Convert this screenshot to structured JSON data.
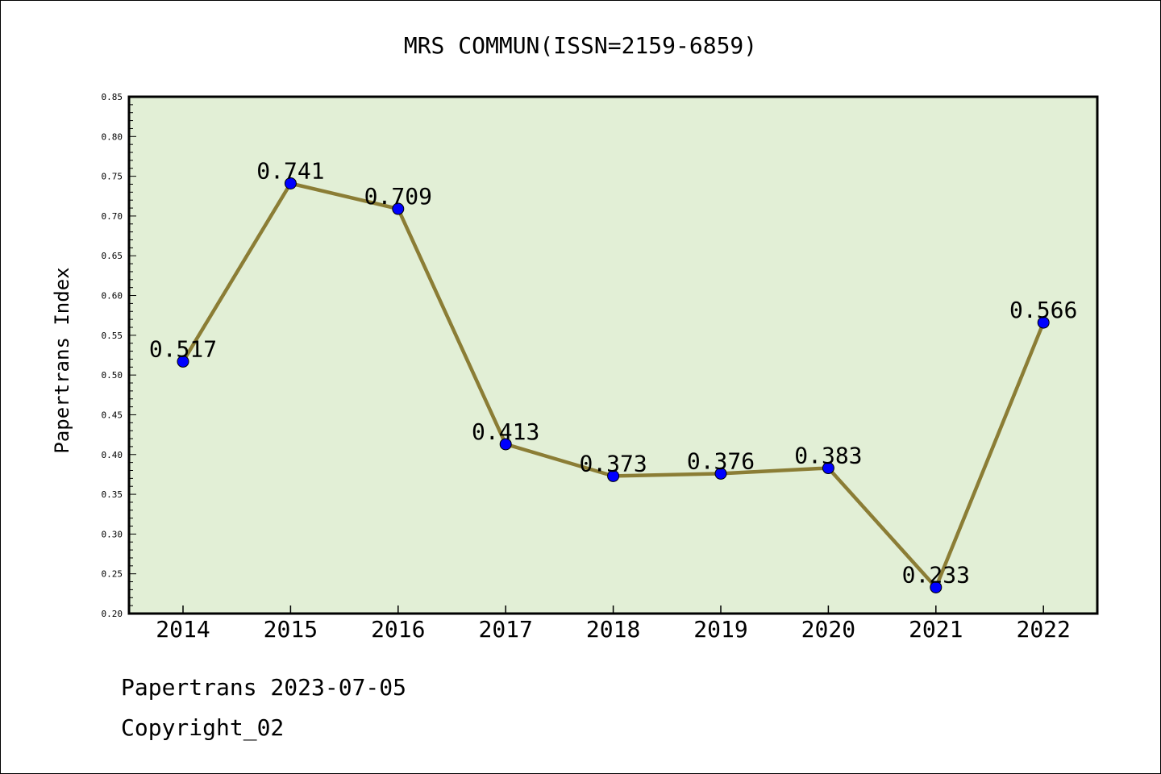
{
  "footer": {
    "date_line": "Papertrans 2023-07-05",
    "copyright_line": "Copyright_02"
  },
  "colors": {
    "plot_background": "#e2efd6",
    "line": "#8b7d35",
    "marker": "#0000ff",
    "axis": "#000000"
  },
  "chart_data": {
    "type": "line",
    "title": "MRS COMMUN(ISSN=2159-6859)",
    "xlabel": "",
    "ylabel": "Papertrans Index",
    "categories": [
      "2014",
      "2015",
      "2016",
      "2017",
      "2018",
      "2019",
      "2020",
      "2021",
      "2022"
    ],
    "values": [
      0.517,
      0.741,
      0.709,
      0.413,
      0.373,
      0.376,
      0.383,
      0.233,
      0.566
    ],
    "data_labels": [
      "0.517",
      "0.741",
      "0.709",
      "0.413",
      "0.373",
      "0.376",
      "0.383",
      "0.233",
      "0.566"
    ],
    "ylim": [
      0.2,
      0.85
    ],
    "yticks": [
      "0.20",
      "0.25",
      "0.30",
      "0.35",
      "0.40",
      "0.45",
      "0.50",
      "0.55",
      "0.60",
      "0.65",
      "0.70",
      "0.75",
      "0.80",
      "0.85"
    ],
    "grid": false,
    "legend": "none"
  }
}
